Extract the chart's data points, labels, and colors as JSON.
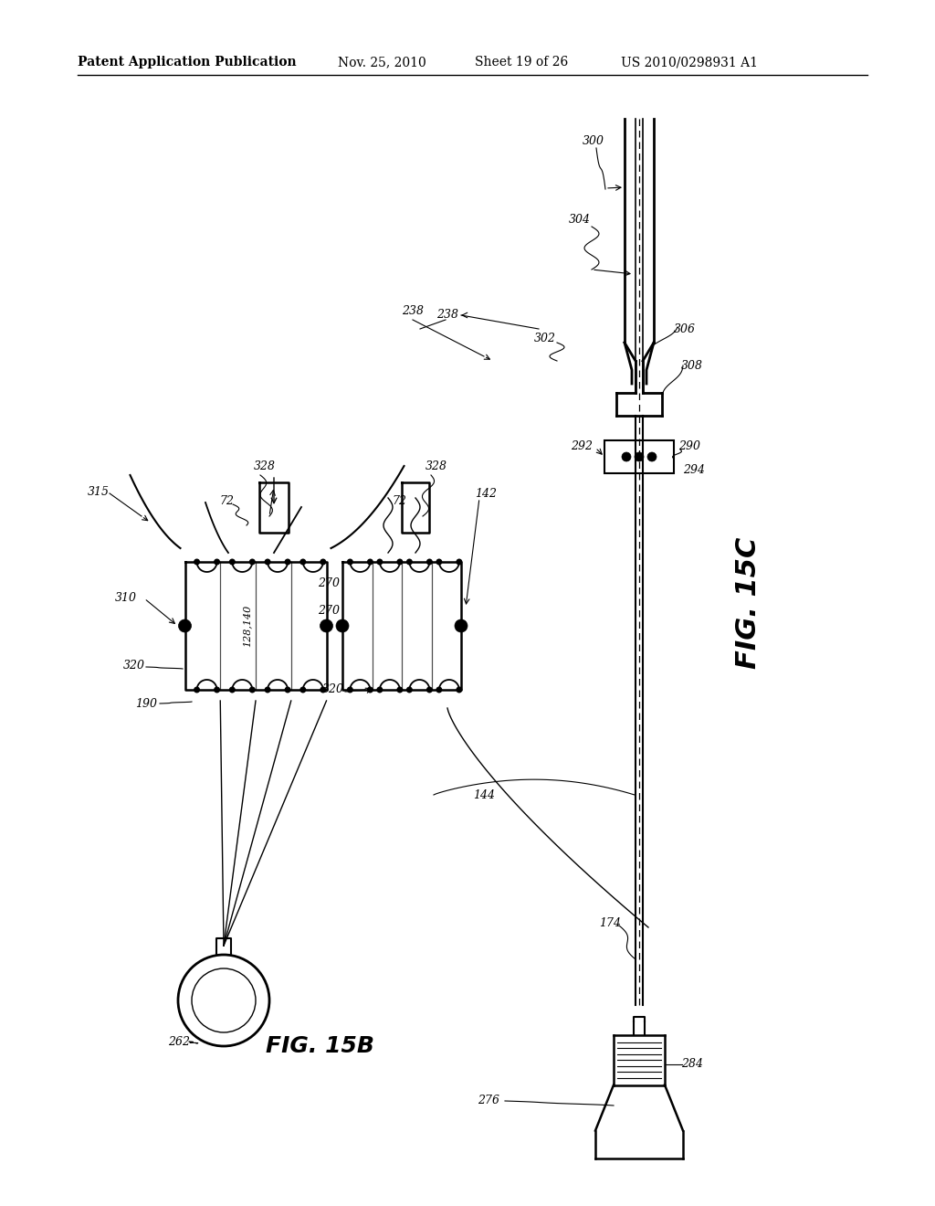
{
  "background_color": "#ffffff",
  "header_text": "Patent Application Publication",
  "header_date": "Nov. 25, 2010",
  "header_sheet": "Sheet 19 of 26",
  "header_patent": "US 2010/0298931 A1",
  "fig_label_b": "FIG. 15B",
  "fig_label_c": "FIG. 15C",
  "page_width": 1.0,
  "page_height": 1.0
}
